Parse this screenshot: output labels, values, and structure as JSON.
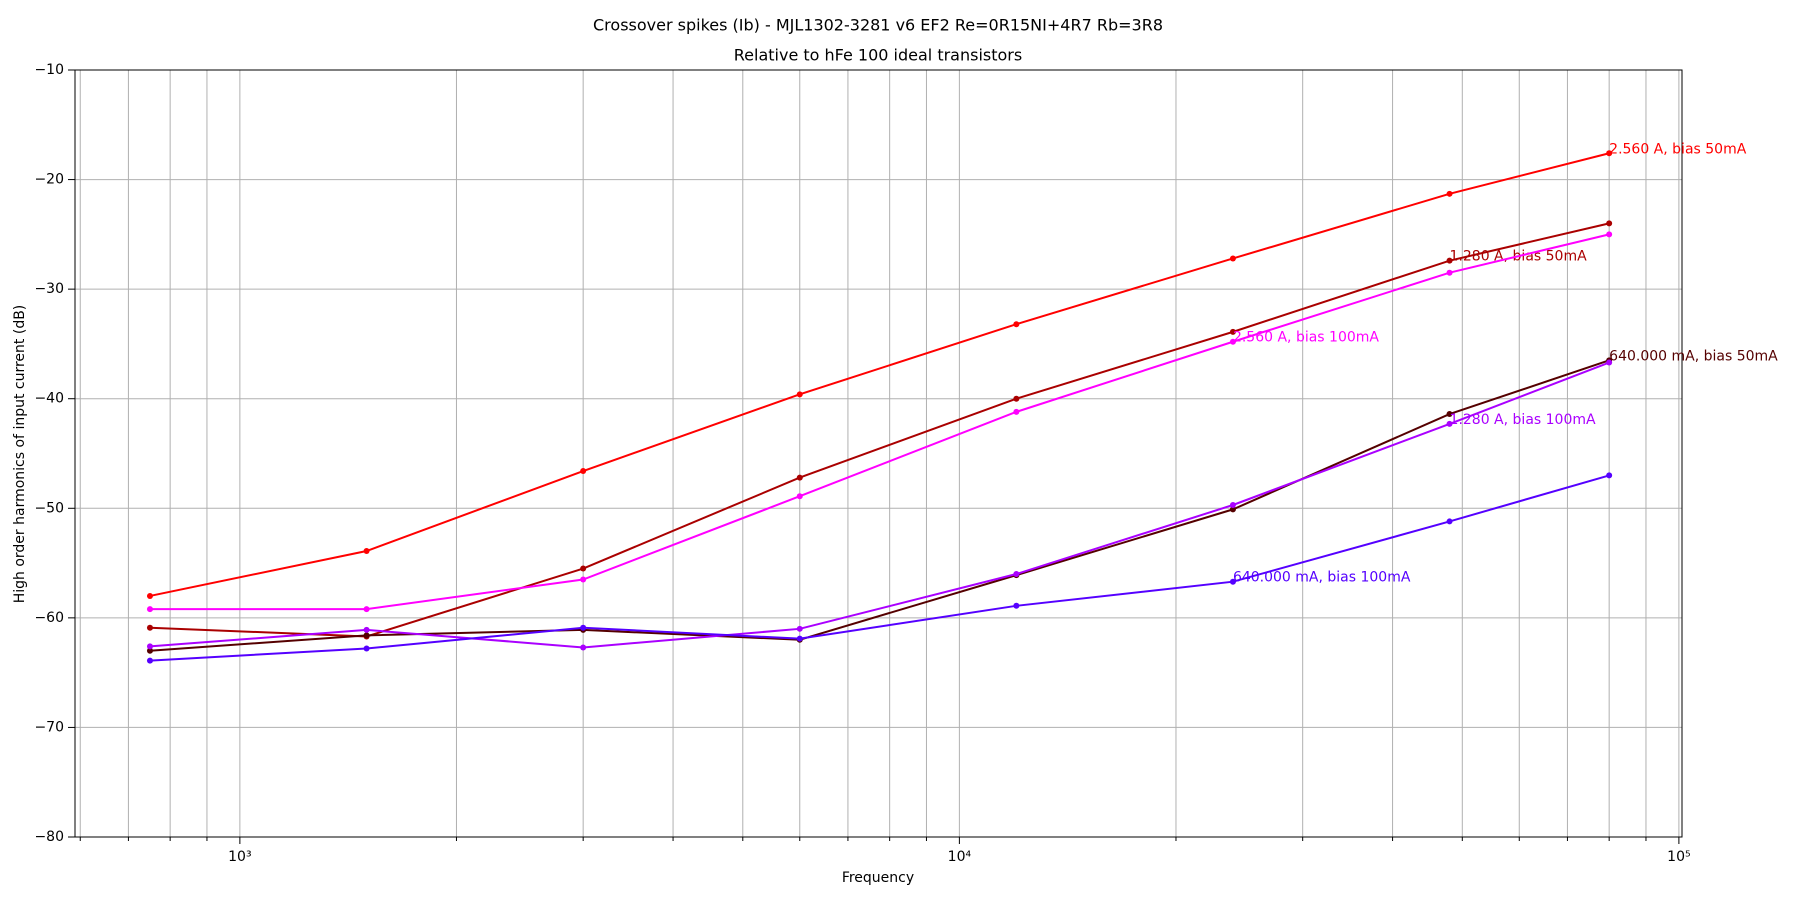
{
  "chart_data": {
    "type": "line",
    "title": "Crossover spikes (Ib) - MJL1302-3281 v6 EF2 Re=0R15NI+4R7 Rb=3R8",
    "subtitle": "Relative to hFe 100 ideal transistors",
    "x_label": "Frequency",
    "y_label": "High order harmonics of input current (dB)",
    "x_scale": "log",
    "grid": true,
    "x": [
      750,
      1500,
      3000,
      6000,
      12000,
      24000,
      48000,
      80000
    ],
    "xlim": [
      590,
      101000
    ],
    "xticks": [
      {
        "value": 1000,
        "label": "10³"
      },
      {
        "value": 10000,
        "label": "10⁴"
      },
      {
        "value": 100000,
        "label": "10⁵"
      }
    ],
    "xminorticks": [
      600,
      700,
      800,
      900,
      2000,
      3000,
      4000,
      5000,
      6000,
      7000,
      8000,
      9000,
      20000,
      30000,
      40000,
      50000,
      60000,
      70000,
      80000,
      90000
    ],
    "ylim": [
      -80,
      -10
    ],
    "yticks": [
      {
        "value": -80,
        "label": "−80"
      },
      {
        "value": -70,
        "label": "−70"
      },
      {
        "value": -60,
        "label": "−60"
      },
      {
        "value": -50,
        "label": "−50"
      },
      {
        "value": -40,
        "label": "−40"
      },
      {
        "value": -30,
        "label": "−30"
      },
      {
        "value": -20,
        "label": "−20"
      },
      {
        "value": -10,
        "label": "−10"
      }
    ],
    "series": [
      {
        "name": "2.560 A, bias 50mA",
        "color": "#ff0000",
        "values": [
          -58.0,
          -53.9,
          -46.6,
          -39.6,
          -33.2,
          -27.2,
          -21.3,
          -17.6
        ]
      },
      {
        "name": "1.280 A, bias 50mA",
        "color": "#aa0000",
        "values": [
          -60.9,
          -61.7,
          -55.5,
          -47.2,
          -40.0,
          -33.9,
          -27.4,
          -24.0
        ]
      },
      {
        "name": "2.560 A, bias 100mA",
        "color": "#ff00ff",
        "values": [
          -59.2,
          -59.2,
          -56.5,
          -48.9,
          -41.2,
          -34.8,
          -28.5,
          -25.0
        ]
      },
      {
        "name": "640.000 mA, bias 50mA",
        "color": "#550000",
        "values": [
          -63.0,
          -61.6,
          -61.1,
          -62.0,
          -56.1,
          -50.1,
          -41.4,
          -36.5
        ]
      },
      {
        "name": "1.280 A, bias 100mA",
        "color": "#aa00ff",
        "values": [
          -62.6,
          -61.1,
          -62.7,
          -61.0,
          -56.0,
          -49.7,
          -42.3,
          -36.7
        ]
      },
      {
        "name": "640.000 mA, bias 100mA",
        "color": "#5500ff",
        "values": [
          -63.9,
          -62.8,
          -60.9,
          -61.9,
          -58.9,
          -56.7,
          -51.2,
          -47.0
        ]
      }
    ]
  }
}
